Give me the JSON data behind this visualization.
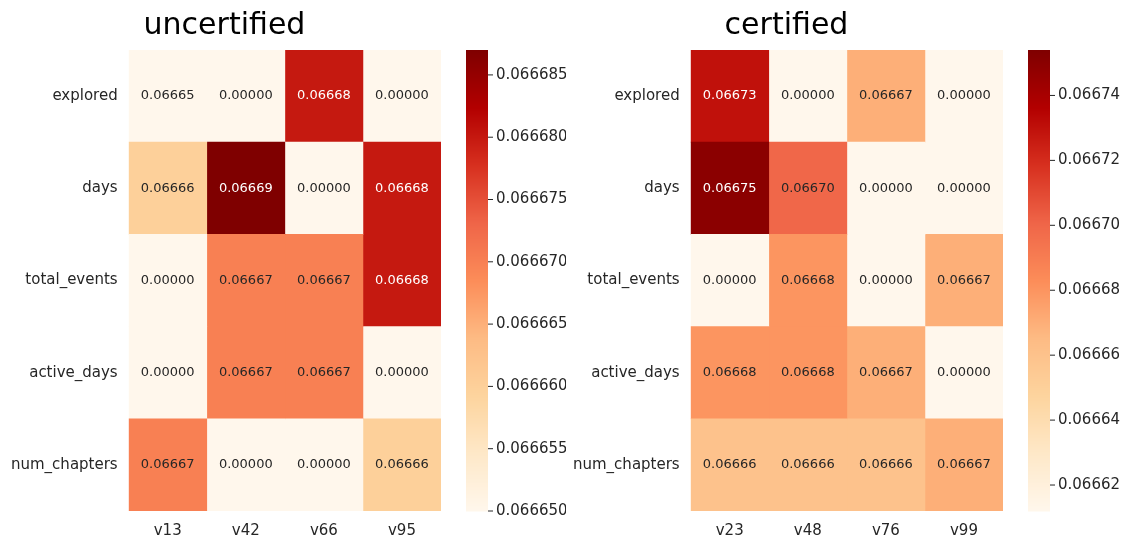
{
  "chart_data": [
    {
      "type": "heatmap",
      "title": "uncertified",
      "categories": [
        "v13",
        "v42",
        "v66",
        "v95"
      ],
      "y_categories": [
        "explored",
        "days",
        "total_events",
        "active_days",
        "num_chapters"
      ],
      "cells": [
        [
          0.06665,
          0.0,
          0.06668,
          0.0
        ],
        [
          0.06666,
          0.06669,
          0.0,
          0.06668
        ],
        [
          0.0,
          0.06667,
          0.06667,
          0.06668
        ],
        [
          0.0,
          0.06667,
          0.06667,
          0.0
        ],
        [
          0.06667,
          0.0,
          0.0,
          0.06666
        ]
      ],
      "cell_labels": [
        [
          "0.06665",
          "0.00000",
          "0.06668",
          "0.00000"
        ],
        [
          "0.06666",
          "0.06669",
          "0.00000",
          "0.06668"
        ],
        [
          "0.00000",
          "0.06667",
          "0.06667",
          "0.06668"
        ],
        [
          "0.00000",
          "0.06667",
          "0.06667",
          "0.00000"
        ],
        [
          "0.06667",
          "0.00000",
          "0.00000",
          "0.06666"
        ]
      ],
      "clim": [
        0.06665,
        0.066687
      ],
      "cticks": [
        {
          "value": 0.06665,
          "label": "0.066650"
        },
        0.066655,
        {
          "value": 0.06666,
          "label": "0.066660"
        },
        0.066665,
        {
          "value": 0.06667,
          "label": "0.066670"
        },
        0.066675,
        {
          "value": 0.06668,
          "label": "0.066680"
        },
        0.066685
      ]
    },
    {
      "type": "heatmap",
      "title": "certified",
      "categories": [
        "v23",
        "v48",
        "v76",
        "v99"
      ],
      "y_categories": [
        "explored",
        "days",
        "total_events",
        "active_days",
        "num_chapters"
      ],
      "cells": [
        [
          0.06673,
          0.0,
          0.06667,
          0.0
        ],
        [
          0.06675,
          0.0667,
          0.0,
          0.0
        ],
        [
          0.0,
          0.06668,
          0.0,
          0.06667
        ],
        [
          0.06668,
          0.06668,
          0.06667,
          0.0
        ],
        [
          0.06666,
          0.06666,
          0.06666,
          0.06667
        ]
      ],
      "cell_labels": [
        [
          "0.06673",
          "0.00000",
          "0.06667",
          "0.00000"
        ],
        [
          "0.06675",
          "0.06670",
          "0.00000",
          "0.00000"
        ],
        [
          "0.00000",
          "0.06668",
          "0.00000",
          "0.06667"
        ],
        [
          "0.06668",
          "0.06668",
          "0.06667",
          "0.00000"
        ],
        [
          "0.06666",
          "0.06666",
          "0.06666",
          "0.06667"
        ]
      ],
      "clim": [
        0.066612,
        0.066754
      ],
      "cticks": [
        0.06662,
        0.06664,
        0.06666,
        0.06668,
        {
          "value": 0.0667,
          "label": "0.06670"
        },
        0.06672,
        0.06674
      ]
    }
  ]
}
